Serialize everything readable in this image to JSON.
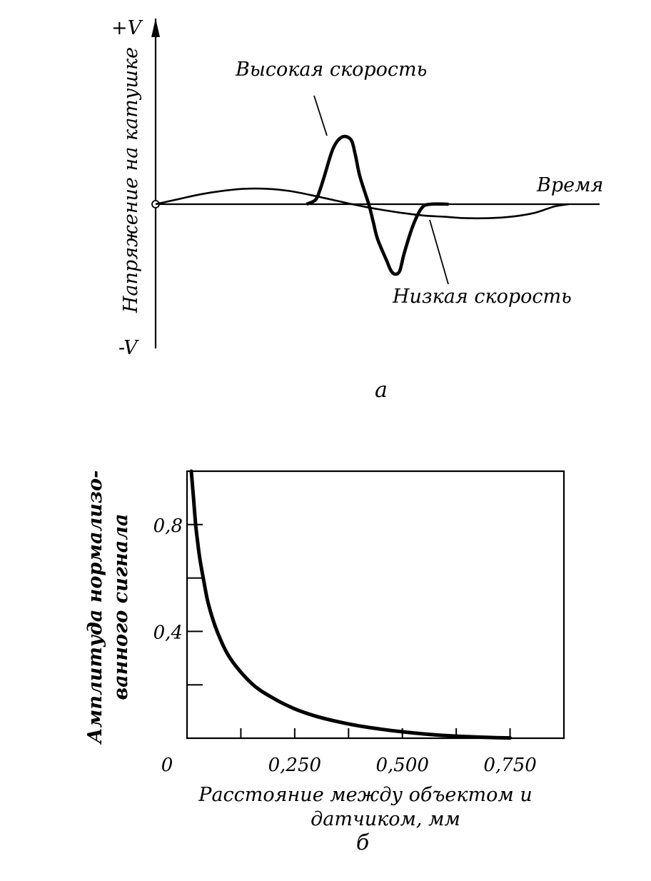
{
  "chart_data": [
    {
      "type": "line",
      "panel_label": "а",
      "x_axis_label": "Время",
      "y_axis_label": "Напряжение на катушке",
      "y_max_label": "+V",
      "y_min_label": "-V",
      "ylim": [
        -1,
        1
      ],
      "grid": false,
      "series": [
        {
          "name": "Высокая скорость",
          "t": [
            0.34,
            0.36,
            0.37,
            0.38,
            0.4,
            0.42,
            0.44,
            0.45,
            0.46,
            0.48,
            0.49,
            0.5,
            0.52,
            0.53,
            0.54,
            0.55,
            0.56,
            0.58,
            0.6,
            0.62,
            0.66
          ],
          "v": [
            0.0,
            0.06,
            0.2,
            0.4,
            0.8,
            0.96,
            0.92,
            0.7,
            0.4,
            0.0,
            -0.25,
            -0.5,
            -0.8,
            -0.95,
            -1.0,
            -0.95,
            -0.7,
            -0.3,
            -0.05,
            0.0,
            0.0
          ]
        },
        {
          "name": "Низкая скорость",
          "t": [
            0.0,
            0.05,
            0.1,
            0.15,
            0.2,
            0.25,
            0.3,
            0.35,
            0.4,
            0.45,
            0.5,
            0.55,
            0.6,
            0.65,
            0.7,
            0.75,
            0.8,
            0.85,
            0.88,
            0.9,
            0.93
          ],
          "v": [
            0.0,
            0.07,
            0.14,
            0.19,
            0.22,
            0.22,
            0.19,
            0.13,
            0.06,
            -0.01,
            -0.07,
            -0.12,
            -0.16,
            -0.18,
            -0.2,
            -0.2,
            -0.18,
            -0.13,
            -0.07,
            -0.03,
            0.0
          ]
        }
      ]
    },
    {
      "type": "line",
      "panel_label": "б",
      "xlabel_line1": "Расстояние между объектом и",
      "xlabel_line2": "датчиком, мм",
      "ylabel_line1": "Амплитуда нормализо-",
      "ylabel_line2": "ванного сигнала",
      "xlim": [
        0,
        0.875
      ],
      "ylim": [
        0,
        1.0
      ],
      "x_ticks": [
        0.125,
        0.25,
        0.375,
        0.5,
        0.625,
        0.75
      ],
      "x_tick_labels": [
        "0",
        "0,250",
        "0,500",
        "0,750"
      ],
      "x_tick_label_values": [
        0,
        0.25,
        0.5,
        0.75
      ],
      "y_ticks": [
        0.2,
        0.4,
        0.6,
        0.8
      ],
      "y_tick_labels": [
        "0,4",
        "0,8"
      ],
      "y_tick_label_values": [
        0.4,
        0.8
      ],
      "grid": false,
      "series": [
        {
          "x": [
            0.01,
            0.015,
            0.02,
            0.025,
            0.03,
            0.04,
            0.05,
            0.07,
            0.1,
            0.15,
            0.2,
            0.25,
            0.3,
            0.35,
            0.4,
            0.45,
            0.5,
            0.55,
            0.6,
            0.65,
            0.7,
            0.75
          ],
          "y": [
            1.0,
            0.9,
            0.8,
            0.73,
            0.67,
            0.58,
            0.5,
            0.4,
            0.3,
            0.205,
            0.15,
            0.11,
            0.082,
            0.062,
            0.046,
            0.034,
            0.024,
            0.016,
            0.01,
            0.006,
            0.003,
            0.001
          ]
        }
      ]
    }
  ]
}
